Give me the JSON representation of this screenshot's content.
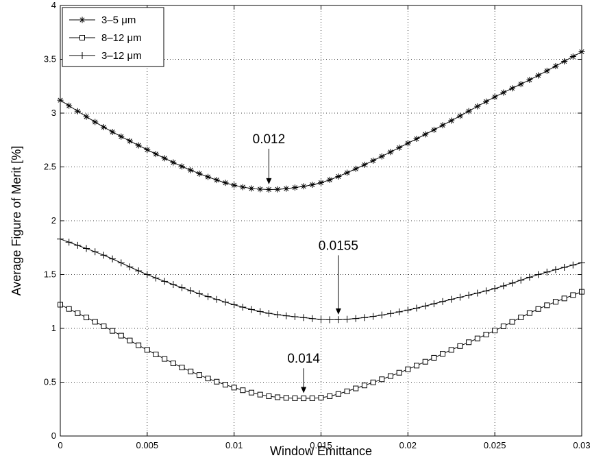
{
  "chart_data": {
    "type": "line",
    "title": "",
    "xlabel": "Window Emittance",
    "ylabel": "Average Figure of Merit [%]",
    "xlim": [
      0,
      0.03
    ],
    "ylim": [
      0,
      4
    ],
    "grid": true,
    "legend_position": "top-left",
    "x_ticks": [
      0,
      0.005,
      0.01,
      0.015,
      0.02,
      0.025,
      0.03
    ],
    "x_tick_labels": [
      "0",
      "0.005",
      "0.01",
      "0.015",
      "0.02",
      "0.025",
      "0.03"
    ],
    "y_ticks": [
      0,
      0.5,
      1,
      1.5,
      2,
      2.5,
      3,
      3.5,
      4
    ],
    "y_tick_labels": [
      "0",
      "0.5",
      "1",
      "1.5",
      "2",
      "2.5",
      "3",
      "3.5",
      "4"
    ],
    "x": [
      0,
      0.0025,
      0.005,
      0.0075,
      0.01,
      0.012,
      0.014,
      0.0155,
      0.0175,
      0.02,
      0.0225,
      0.025,
      0.0275,
      0.03
    ],
    "series": [
      {
        "name": "3–5 μm",
        "marker": "asterisk",
        "values": [
          3.12,
          2.87,
          2.66,
          2.47,
          2.33,
          2.29,
          2.32,
          2.38,
          2.52,
          2.72,
          2.93,
          3.15,
          3.35,
          3.57
        ]
      },
      {
        "name": "8–12 μm",
        "marker": "square",
        "values": [
          1.22,
          1.02,
          0.8,
          0.6,
          0.45,
          0.37,
          0.35,
          0.37,
          0.47,
          0.62,
          0.8,
          0.98,
          1.18,
          1.34
        ]
      },
      {
        "name": "3–12 μm",
        "marker": "plus",
        "values": [
          1.83,
          1.68,
          1.5,
          1.35,
          1.22,
          1.14,
          1.1,
          1.08,
          1.1,
          1.17,
          1.27,
          1.37,
          1.5,
          1.61
        ]
      }
    ],
    "annotations": [
      {
        "text": "0.012",
        "x": 0.012,
        "y": 2.3,
        "label_y": 2.72
      },
      {
        "text": "0.0155",
        "x": 0.016,
        "y": 1.09,
        "label_y": 1.73
      },
      {
        "text": "0.014",
        "x": 0.014,
        "y": 0.36,
        "label_y": 0.68
      }
    ]
  }
}
